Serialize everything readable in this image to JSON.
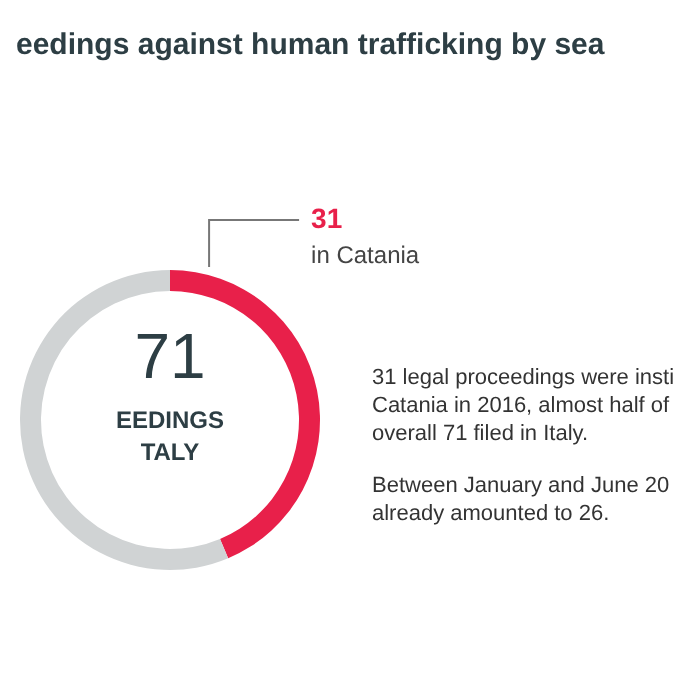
{
  "chart_data": {
    "type": "donut",
    "title": "eedings against human trafficking by sea",
    "categories": [
      "in Catania",
      null
    ],
    "values": [
      31,
      40
    ],
    "colors": [
      "#e8204a",
      "#d0d3d4"
    ],
    "value_labels": [
      "31",
      null
    ],
    "legend": false,
    "annotations": [
      "71",
      "EEDINGS\nTALY",
      "31 legal proceedings were insti\nCatania in 2016, almost half of\noverall 71 filed in Italy.",
      "Between January and June 20\nalready amounted to 26."
    ]
  }
}
